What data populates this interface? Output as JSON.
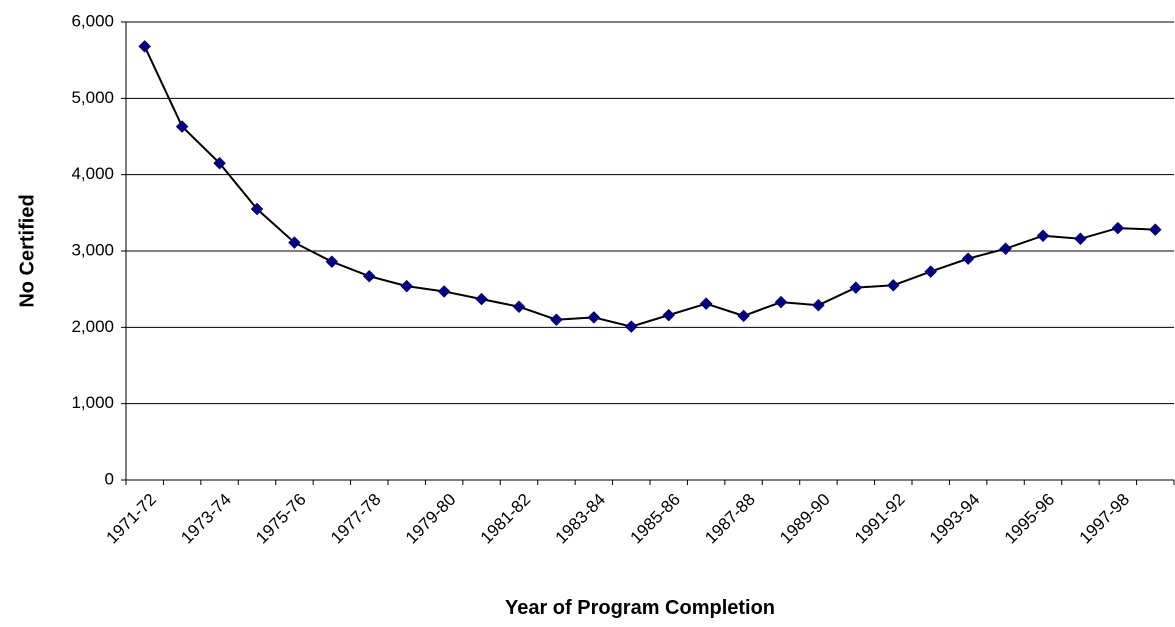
{
  "chart_data": {
    "type": "line",
    "x_label": "Year of Program Completion",
    "y_label": "No Certified",
    "categories": [
      "1971-72",
      null,
      "1973-74",
      null,
      "1975-76",
      null,
      "1977-78",
      null,
      "1979-80",
      null,
      "1981-82",
      null,
      "1983-84",
      null,
      "1985-86",
      null,
      "1987-88",
      null,
      "1989-90",
      null,
      "1991-92",
      null,
      "1993-94",
      null,
      "1995-96",
      null,
      "1997-98",
      null
    ],
    "series": [
      {
        "name": "No Certified",
        "color": "#000080",
        "values": [
          5680,
          4630,
          4150,
          3550,
          3110,
          2860,
          2670,
          2540,
          2470,
          2370,
          2270,
          2100,
          2130,
          2010,
          2160,
          2310,
          2150,
          2330,
          2290,
          2520,
          2550,
          2730,
          2900,
          3030,
          3200,
          3160,
          3300,
          3280
        ]
      }
    ],
    "ylim": [
      0,
      6000
    ],
    "yticks": [
      0,
      {
        "value": 1000,
        "label": "1,000"
      },
      {
        "value": 2000,
        "label": "2,000"
      },
      {
        "value": 3000,
        "label": "3,000"
      },
      {
        "value": 4000,
        "label": "4,000"
      },
      {
        "value": 5000,
        "label": "5,000"
      },
      {
        "value": 6000,
        "label": "6,000"
      }
    ],
    "grid": true
  }
}
